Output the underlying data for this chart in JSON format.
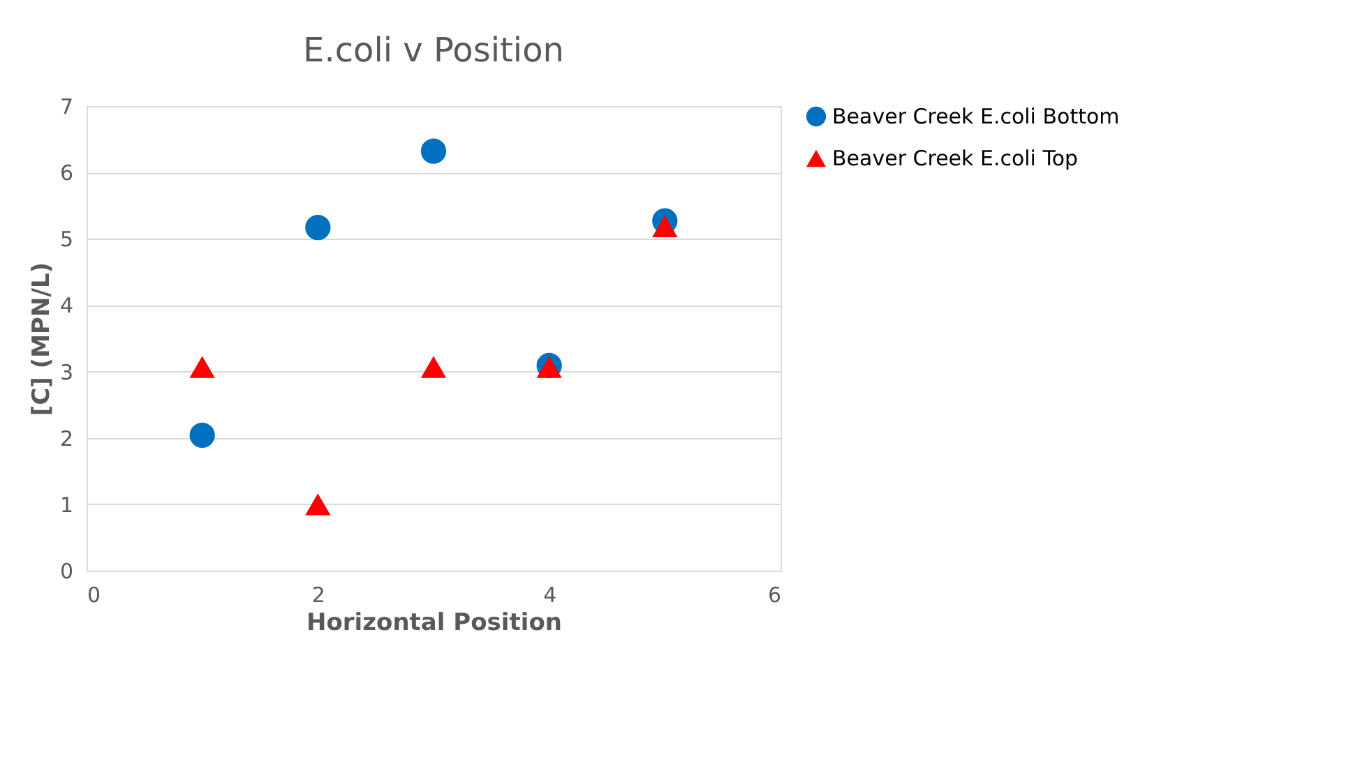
{
  "chart_data": {
    "type": "scatter",
    "title": "E.coli v Position",
    "xlabel": "Horizontal Position",
    "ylabel": "[C] (MPN/L)",
    "x": [
      1,
      2,
      3,
      4,
      5
    ],
    "series": [
      {
        "name": "Beaver Creek E.coli Bottom",
        "color": "#0070c0",
        "marker": "circle",
        "values": [
          2.04,
          5.17,
          6.32,
          3.09,
          5.27
        ]
      },
      {
        "name": "Beaver Creek E.coli Top",
        "color": "#ff0000",
        "marker": "triangle",
        "values": [
          3.07,
          1.0,
          3.07,
          3.07,
          5.19
        ]
      }
    ],
    "xlim": [
      0,
      6
    ],
    "xticks": [
      0,
      2,
      4,
      6
    ],
    "ylim": [
      0,
      7
    ],
    "yticks": [
      0,
      1,
      2,
      3,
      4,
      5,
      6,
      7
    ],
    "grid": "y",
    "legend": "right"
  }
}
